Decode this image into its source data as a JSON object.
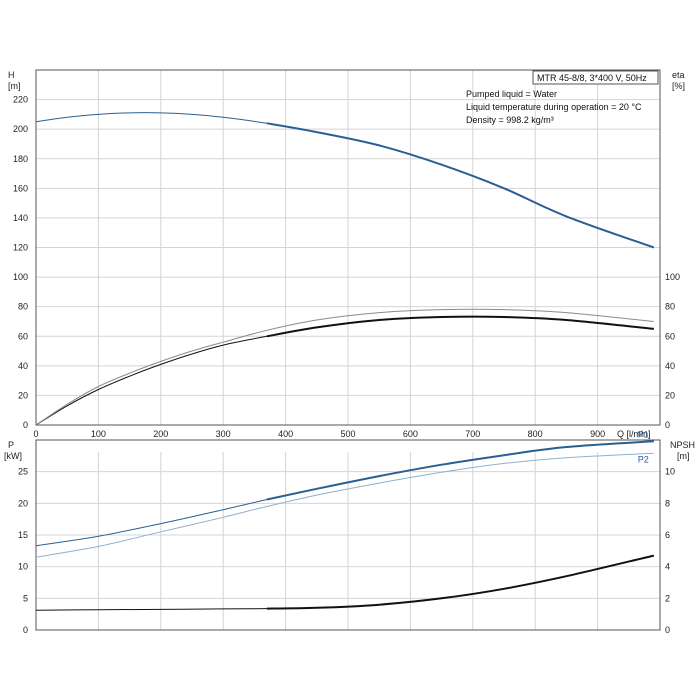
{
  "info": {
    "model": "MTR 45-8/8, 3*400 V, 50Hz",
    "lines": [
      "Pumped liquid = Water",
      "Liquid temperature during operation = 20 °C",
      "Density = 998.2 kg/m³"
    ]
  },
  "colors": {
    "blue": "#2a5f92",
    "light_blue": "#8fb0cf",
    "black": "#111111",
    "grey": "#8a8a8a"
  },
  "chart_data": [
    {
      "type": "line",
      "x_axis": {
        "label": "Q [l/min]",
        "range": [
          0,
          1000
        ],
        "ticks": [
          0,
          100,
          200,
          300,
          400,
          500,
          600,
          700,
          800,
          900
        ]
      },
      "y_left": {
        "label": "H",
        "unit": "[m]",
        "range": [
          0,
          240
        ],
        "ticks": [
          0,
          20,
          40,
          60,
          80,
          100,
          120,
          140,
          160,
          180,
          200,
          220
        ]
      },
      "y_right": {
        "label": "eta",
        "unit": "[%]",
        "range": [
          0,
          240
        ],
        "ticks": [
          0,
          20,
          40,
          60,
          80,
          100
        ]
      },
      "grid": true,
      "series": [
        {
          "axis": "left",
          "color": "#2a5f92",
          "x": [
            0,
            50,
            100,
            150,
            200,
            250,
            300,
            370,
            450,
            550,
            650,
            750,
            850,
            990
          ],
          "y": [
            205,
            208,
            210,
            211,
            211,
            210,
            208,
            204,
            198,
            189,
            176,
            160,
            141,
            120
          ]
        },
        {
          "axis": "right",
          "color": "#111111",
          "x": [
            0,
            50,
            100,
            150,
            200,
            250,
            300,
            370,
            450,
            550,
            650,
            750,
            850,
            990
          ],
          "y": [
            0,
            13,
            24,
            33,
            41,
            48,
            54,
            60,
            66,
            71,
            73,
            73,
            71,
            65
          ]
        },
        {
          "axis": "right",
          "color": "#8a8a8a",
          "x": [
            0,
            50,
            100,
            150,
            200,
            250,
            300,
            370,
            450,
            550,
            650,
            750,
            850,
            990
          ],
          "y": [
            0,
            14,
            26,
            35,
            43,
            50,
            56,
            64,
            71,
            76,
            78,
            78,
            76,
            70
          ]
        }
      ]
    },
    {
      "type": "line",
      "x_axis": {
        "label": "",
        "range": [
          0,
          1000
        ],
        "ticks": [
          0,
          100,
          200,
          300,
          400,
          500,
          600,
          700,
          800,
          900
        ]
      },
      "y_left": {
        "label": "P",
        "unit": "[kW]",
        "range": [
          0,
          30
        ],
        "ticks": [
          0,
          5,
          10,
          15,
          20,
          25
        ]
      },
      "y_right": {
        "label": "NPSH",
        "unit": "[m]",
        "range": [
          0,
          12
        ],
        "ticks": [
          0,
          2,
          4,
          6,
          8,
          10
        ]
      },
      "grid": true,
      "series": [
        {
          "name": "P1",
          "axis": "left",
          "color": "#2a5f92",
          "x": [
            0,
            100,
            200,
            300,
            370,
            450,
            550,
            650,
            750,
            850,
            990
          ],
          "y": [
            13.3,
            14.8,
            16.8,
            19.0,
            20.6,
            22.3,
            24.3,
            26.1,
            27.6,
            28.9,
            29.8
          ]
        },
        {
          "name": "P2",
          "axis": "left",
          "color": "#8fb0cf",
          "x": [
            0,
            100,
            200,
            300,
            370,
            450,
            550,
            650,
            750,
            850,
            990
          ],
          "y": [
            11.5,
            13.2,
            15.5,
            17.8,
            19.5,
            21.3,
            23.2,
            24.9,
            26.3,
            27.2,
            27.9
          ]
        },
        {
          "axis": "right",
          "color": "#111111",
          "x": [
            0,
            100,
            200,
            300,
            370,
            450,
            550,
            650,
            750,
            850,
            990
          ],
          "y": [
            1.25,
            1.28,
            1.3,
            1.33,
            1.35,
            1.4,
            1.6,
            2.0,
            2.6,
            3.4,
            4.7
          ]
        }
      ]
    }
  ]
}
